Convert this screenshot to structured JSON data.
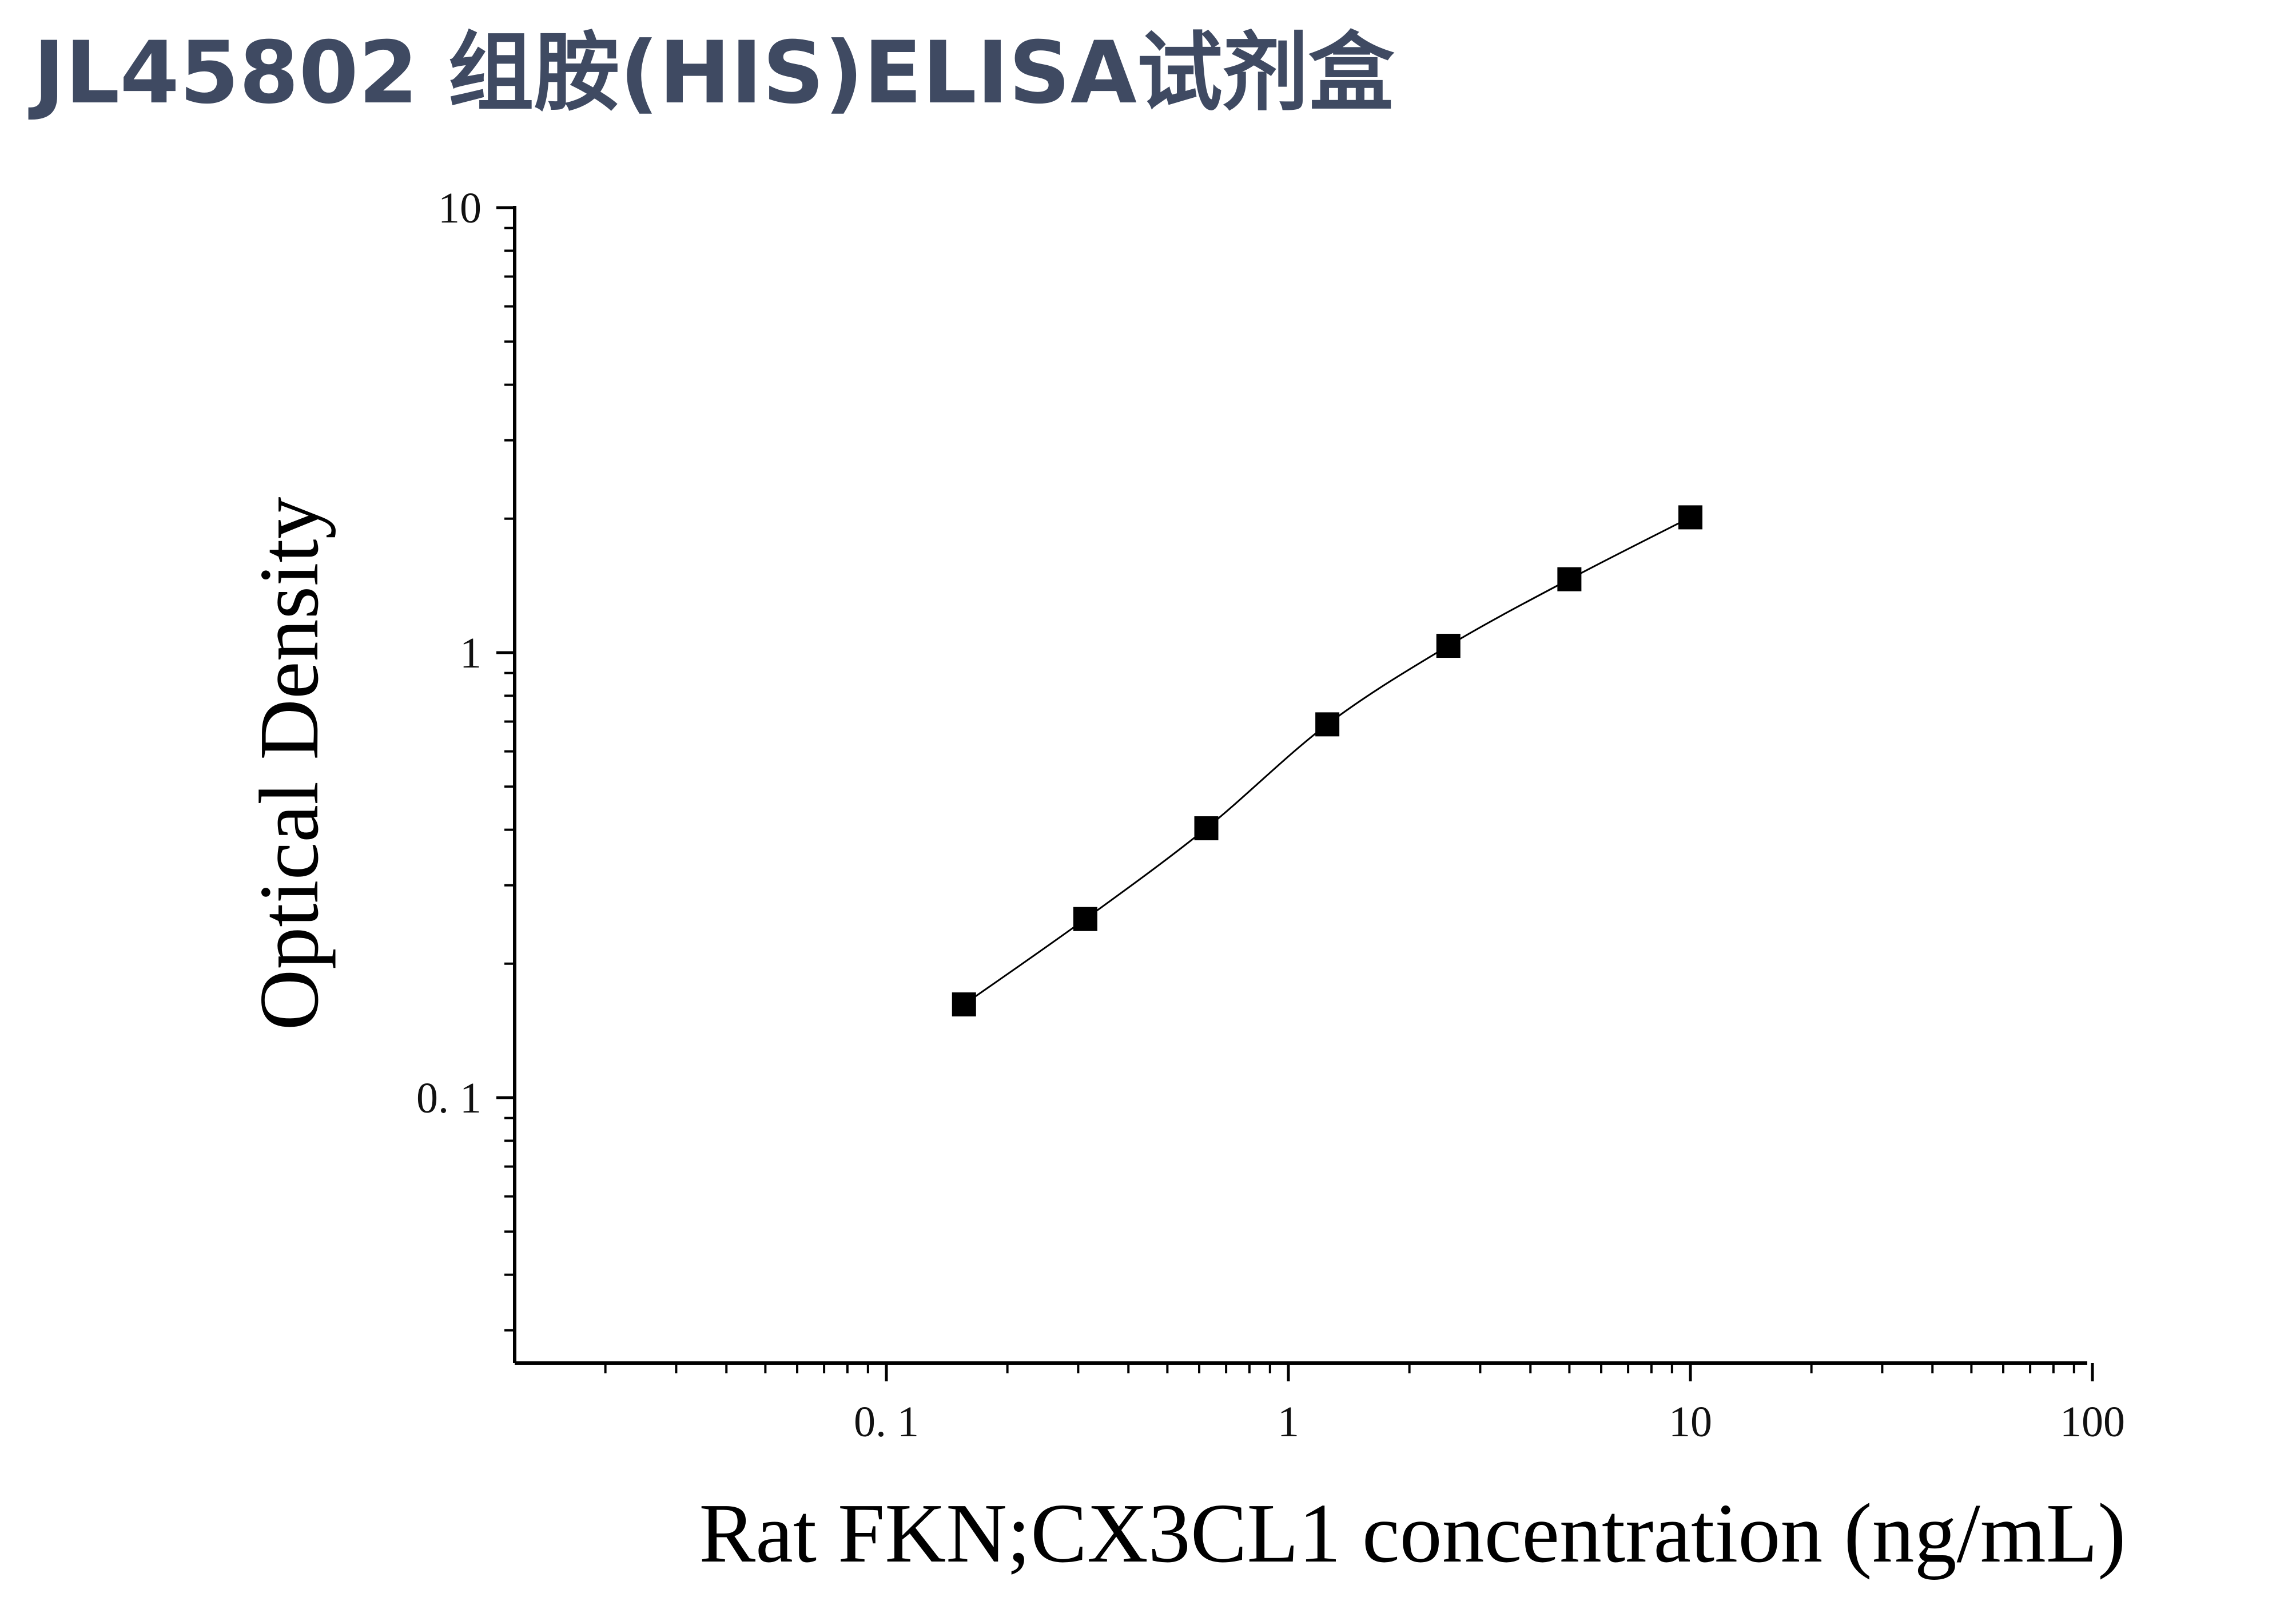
{
  "header": {
    "title": "JL45802 组胺(HIS)ELISA试剂盒"
  },
  "chart_data": {
    "type": "scatter",
    "title": "",
    "xlabel": "Rat FKN;CX3CL1 concentration (ng/mL)",
    "ylabel": "Optical Density",
    "x_scale": "log",
    "y_scale": "log",
    "xlim": [
      0.015,
      100
    ],
    "ylim": [
      0.025,
      10
    ],
    "x_tick_labels": [
      "0. 1",
      "1",
      "10",
      "100"
    ],
    "x_tick_values": [
      0.1,
      1,
      10,
      100
    ],
    "y_tick_labels": [
      "0. 1",
      "1",
      "10"
    ],
    "y_tick_values": [
      0.1,
      1,
      10
    ],
    "grid": false,
    "legend": "none",
    "marker": "square",
    "fit_line": true,
    "marker_color": "#000000",
    "line_color": "#000000",
    "series": [
      {
        "x": [
          0.156,
          0.3125,
          0.625,
          1.25,
          2.5,
          5,
          10
        ],
        "y": [
          0.162,
          0.252,
          0.403,
          0.69,
          1.036,
          1.462,
          2.014
        ]
      }
    ]
  }
}
